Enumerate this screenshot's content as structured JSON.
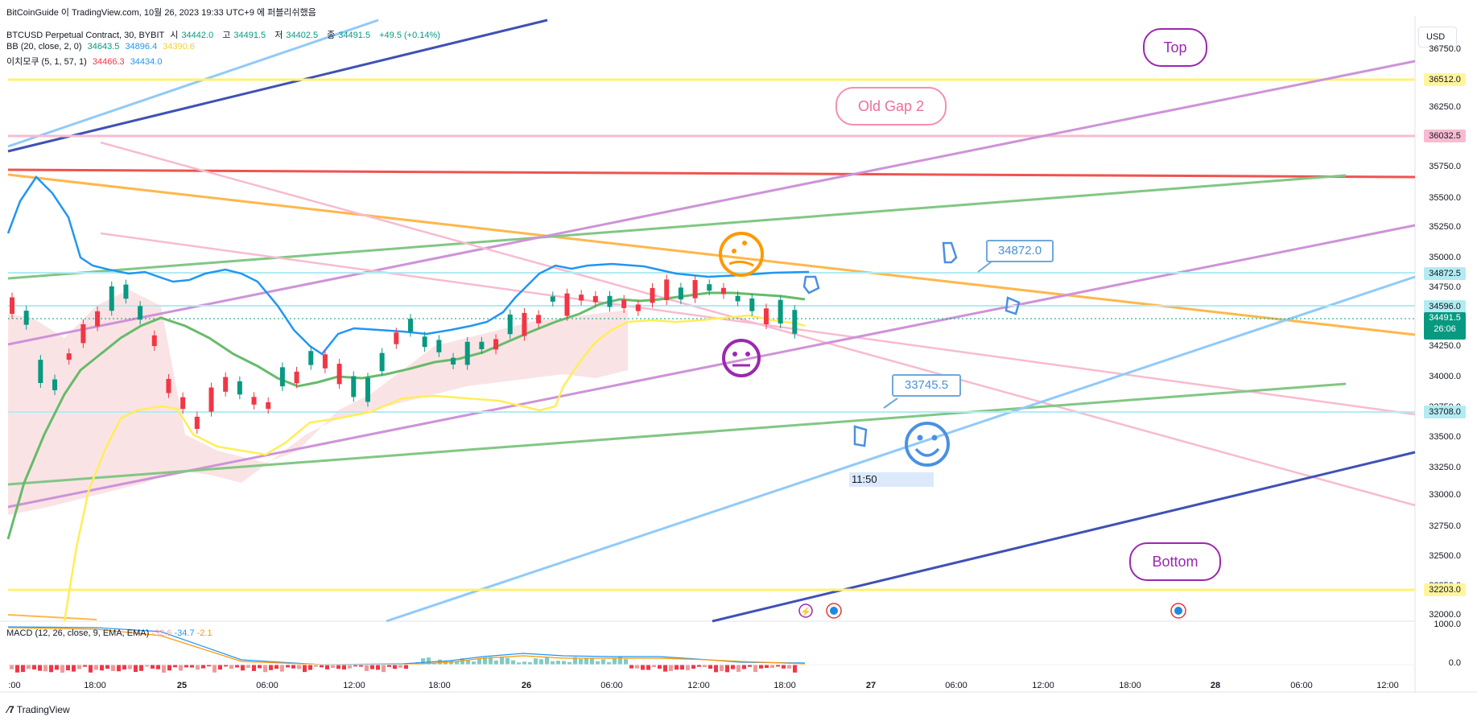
{
  "header": {
    "title_line": "BitCoinGuide 이 TradingView.com, 10월 26, 2023 19:33 UTC+9 에 퍼블리쉬했음",
    "symbol": "BTCUSD Perpetual Contract, 30, BYBIT",
    "ohlc": {
      "o_label": "시",
      "o": "34442.0",
      "h_label": "고",
      "h": "34491.5",
      "l_label": "저",
      "l": "34402.5",
      "c_label": "종",
      "c": "34491.5",
      "change": "+49.5 (+0.14%)"
    },
    "bb": {
      "label": "BB (20, close, 2, 0)",
      "basis": "34643.5",
      "upper": "34896.4",
      "lower": "34390.6"
    },
    "ichimoku": {
      "label": "이치모쿠 (5, 1, 57, 1)",
      "a": "34466.3",
      "b": "34434.0"
    }
  },
  "currency_button": "USD",
  "price_axis": [
    "36750.0",
    "36250.0",
    "35750.0",
    "35500.0",
    "35250.0",
    "35000.0",
    "34750.0",
    "34250.0",
    "34000.0",
    "33750.0",
    "33500.0",
    "33250.0",
    "33000.0",
    "32750.0",
    "32500.0",
    "32250.0",
    "32000.0"
  ],
  "price_tags": [
    {
      "value": "36512.0",
      "bg": "#fff59d"
    },
    {
      "value": "36032.5",
      "bg": "#f8bbd0"
    },
    {
      "value": "34872.5",
      "bg": "#b2ebf2"
    },
    {
      "value": "34596.0",
      "bg": "#b2ebf2"
    },
    {
      "value": "34491.5",
      "bg": "#089981"
    },
    {
      "value": "33708.0",
      "bg": "#b2ebf2"
    },
    {
      "value": "32203.0",
      "bg": "#fff59d"
    }
  ],
  "last_price": {
    "price": "34491.5",
    "countdown": "26:06"
  },
  "macd_axis": [
    "1000.0",
    "0.0"
  ],
  "macd": {
    "label": "MACD (12, 26, close, 9, EMA, EMA)",
    "hist": "-32.6",
    "macd": "-34.7",
    "signal": "-2.1"
  },
  "time_axis": [
    {
      "t": ":00",
      "b": false
    },
    {
      "t": "18:00",
      "b": false
    },
    {
      "t": "25",
      "b": true
    },
    {
      "t": "06:00",
      "b": false
    },
    {
      "t": "12:00",
      "b": false
    },
    {
      "t": "18:00",
      "b": false
    },
    {
      "t": "26",
      "b": true
    },
    {
      "t": "06:00",
      "b": false
    },
    {
      "t": "12:00",
      "b": false
    },
    {
      "t": "18:00",
      "b": false
    },
    {
      "t": "27",
      "b": true
    },
    {
      "t": "06:00",
      "b": false
    },
    {
      "t": "12:00",
      "b": false
    },
    {
      "t": "18:00",
      "b": false
    },
    {
      "t": "28",
      "b": true
    },
    {
      "t": "06:00",
      "b": false
    },
    {
      "t": "12:00",
      "b": false
    }
  ],
  "callouts": {
    "top": "Top",
    "old_gap": "Old Gap 2",
    "bottom": "Bottom"
  },
  "price_labels": {
    "upper": "34872.0",
    "lower": "33745.5"
  },
  "time_box": "11:50",
  "brand": "TradingView",
  "colors": {
    "up": "#089981",
    "down": "#f23645",
    "bb_basis": "#4caf50",
    "bb_upper": "#2196f3",
    "ichimoku_lead": "#f7d12e"
  }
}
